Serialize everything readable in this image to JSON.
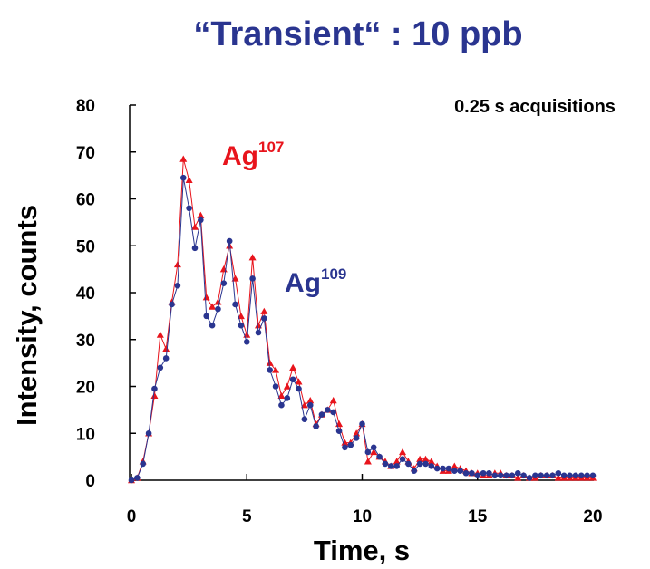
{
  "chart_data": {
    "type": "line",
    "title": "“Transient“ : 10 ppb",
    "annotation": "0.25 s acquisitions",
    "xlabel": "Time, s",
    "ylabel": "Intensity, counts",
    "xlim": [
      0,
      20
    ],
    "ylim": [
      0,
      80
    ],
    "xticks": [
      0,
      5,
      10,
      15,
      20
    ],
    "yticks": [
      0,
      10,
      20,
      30,
      40,
      50,
      60,
      70,
      80
    ],
    "grid": false,
    "colors": {
      "ag107": "#e8141c",
      "ag109": "#2a3590",
      "title": "#2a3590"
    },
    "series": [
      {
        "name": "Ag107",
        "label_base": "Ag",
        "label_sup": "107",
        "marker": "triangle",
        "x": [
          0,
          0.25,
          0.5,
          0.75,
          1,
          1.25,
          1.5,
          1.75,
          2,
          2.25,
          2.5,
          2.75,
          3,
          3.25,
          3.5,
          3.75,
          4,
          4.25,
          4.5,
          4.75,
          5,
          5.25,
          5.5,
          5.75,
          6,
          6.25,
          6.5,
          6.75,
          7,
          7.25,
          7.5,
          7.75,
          8,
          8.25,
          8.5,
          8.75,
          9,
          9.25,
          9.5,
          9.75,
          10,
          10.25,
          10.5,
          10.75,
          11,
          11.25,
          11.5,
          11.75,
          12,
          12.25,
          12.5,
          12.75,
          13,
          13.25,
          13.5,
          13.75,
          14,
          14.25,
          14.5,
          14.75,
          15,
          15.25,
          15.5,
          15.75,
          16,
          16.25,
          16.5,
          16.75,
          17,
          17.25,
          17.5,
          17.75,
          18,
          18.25,
          18.5,
          18.75,
          19,
          19.25,
          19.5,
          19.75,
          20
        ],
        "y": [
          0,
          0.5,
          4,
          10,
          18,
          31,
          28,
          38,
          46,
          68.5,
          64,
          54,
          56.5,
          39,
          37,
          38,
          45,
          50,
          43,
          35,
          31,
          47.5,
          33,
          36,
          25,
          23.5,
          18,
          20,
          24,
          21,
          16,
          17,
          12,
          14,
          15,
          17,
          12,
          8,
          8,
          10,
          12,
          4,
          6,
          5,
          4,
          3,
          4,
          6,
          4,
          2.5,
          4.5,
          4.5,
          4,
          3,
          2,
          2,
          3,
          2.5,
          2,
          1.5,
          1.5,
          1,
          1,
          1.5,
          1.5,
          1,
          1,
          0.5,
          1,
          0.5,
          0.5,
          1,
          1,
          1,
          0.5,
          0.5,
          0.5,
          0.5,
          0.5,
          0.5,
          0.5
        ]
      },
      {
        "name": "Ag109",
        "label_base": "Ag",
        "label_sup": "109",
        "marker": "circle",
        "x": [
          0,
          0.25,
          0.5,
          0.75,
          1,
          1.25,
          1.5,
          1.75,
          2,
          2.25,
          2.5,
          2.75,
          3,
          3.25,
          3.5,
          3.75,
          4,
          4.25,
          4.5,
          4.75,
          5,
          5.25,
          5.5,
          5.75,
          6,
          6.25,
          6.5,
          6.75,
          7,
          7.25,
          7.5,
          7.75,
          8,
          8.25,
          8.5,
          8.75,
          9,
          9.25,
          9.5,
          9.75,
          10,
          10.25,
          10.5,
          10.75,
          11,
          11.25,
          11.5,
          11.75,
          12,
          12.25,
          12.5,
          12.75,
          13,
          13.25,
          13.5,
          13.75,
          14,
          14.25,
          14.5,
          14.75,
          15,
          15.25,
          15.5,
          15.75,
          16,
          16.25,
          16.5,
          16.75,
          17,
          17.25,
          17.5,
          17.75,
          18,
          18.25,
          18.5,
          18.75,
          19,
          19.25,
          19.5,
          19.75,
          20
        ],
        "y": [
          0,
          0.5,
          3.5,
          10,
          19.5,
          24,
          26,
          37.5,
          41.5,
          64.5,
          58,
          49.5,
          55.5,
          35,
          33,
          36.5,
          42,
          51,
          37.5,
          33,
          29.5,
          43,
          31.5,
          34.5,
          23.5,
          20,
          16,
          17.5,
          21.5,
          19.5,
          13,
          16,
          11.5,
          14,
          15,
          14.5,
          10.5,
          7,
          7.5,
          9,
          12,
          6,
          7,
          5,
          3.5,
          3,
          3,
          4.5,
          3.5,
          2,
          3.5,
          3.5,
          3,
          2.5,
          2.5,
          2.5,
          2,
          2,
          1.5,
          1.5,
          1,
          1.5,
          1.5,
          1,
          1,
          1,
          1,
          1.5,
          1,
          0.5,
          1,
          1,
          1,
          1,
          1.5,
          1,
          1,
          1,
          1,
          1,
          1
        ]
      }
    ]
  }
}
